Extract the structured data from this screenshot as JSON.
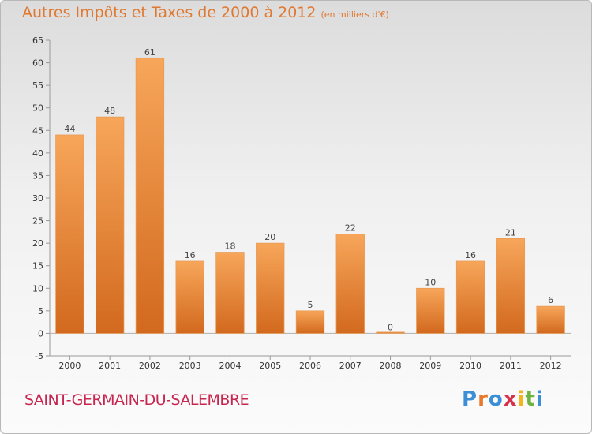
{
  "title": "Autres Impôts et Taxes de 2000 à 2012",
  "subtitle": "(en milliers d'€)",
  "commune": "SAINT-GERMAIN-DU-SALEMBRE",
  "logo": {
    "text": "Proxiti",
    "letter_colors": [
      "#3c8fd6",
      "#e8782a",
      "#3c8fd6",
      "#d6334a",
      "#f2b51c",
      "#6db33f",
      "#3c8fd6"
    ]
  },
  "colors": {
    "bar_light": "#f7a65a",
    "bar_dark": "#d2691e",
    "title": "#e0782f",
    "commune": "#c8254f"
  },
  "chart_data": {
    "type": "bar",
    "title": "Autres Impôts et Taxes de 2000 à 2012",
    "subtitle": "(en milliers d'€)",
    "categories": [
      "2000",
      "2001",
      "2002",
      "2003",
      "2004",
      "2005",
      "2006",
      "2007",
      "2008",
      "2009",
      "2010",
      "2011",
      "2012"
    ],
    "values": [
      44,
      48,
      61,
      16,
      18,
      20,
      5,
      22,
      0,
      10,
      16,
      21,
      6
    ],
    "ylim": [
      -5,
      65
    ],
    "yticks": [
      -5,
      0,
      5,
      10,
      15,
      20,
      25,
      30,
      35,
      40,
      45,
      50,
      55,
      60,
      65
    ],
    "grid": false,
    "legend": "none"
  }
}
